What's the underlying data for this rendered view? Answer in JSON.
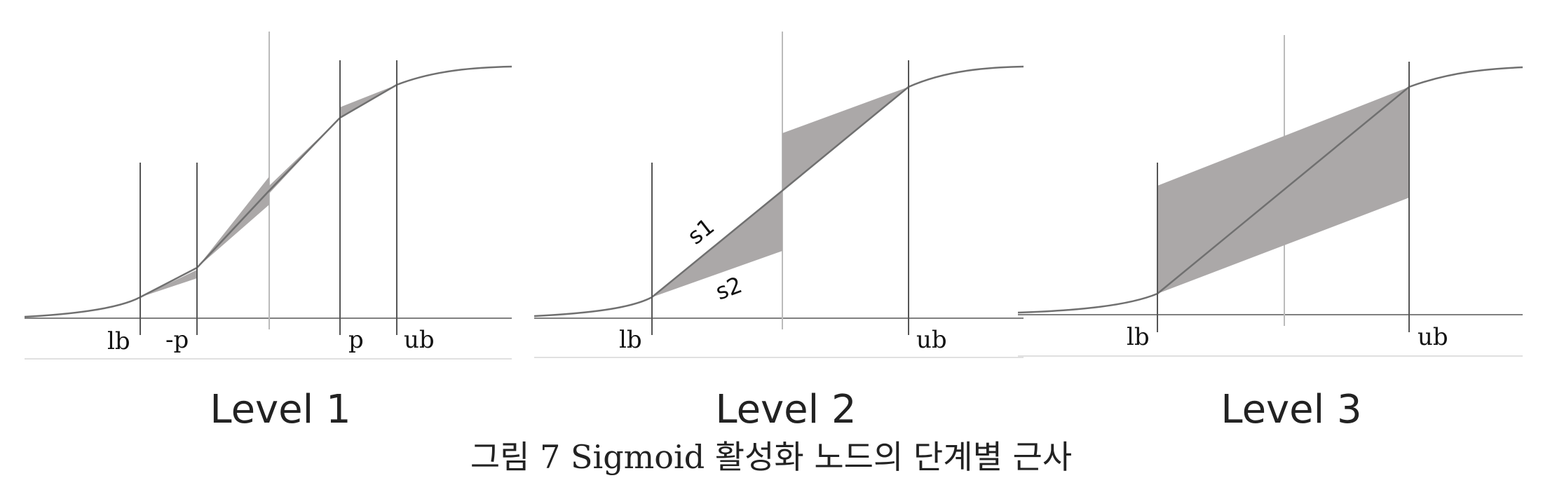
{
  "figure": {
    "caption": "그림 7 Sigmoid 활성화 노드의 단계별 근사",
    "colors": {
      "curve": "#707070",
      "axis": "#808080",
      "bound_line": "#555555",
      "center_line": "#bbbbbb",
      "baseline": "#e0e0e0",
      "fill": "#aba8a8"
    },
    "panels": [
      {
        "title": "Level 1",
        "labels": {
          "lb": "lb",
          "neg_p": "-p",
          "p": "p",
          "ub": "ub"
        }
      },
      {
        "title": "Level 2",
        "labels": {
          "lb": "lb",
          "ub": "ub",
          "s1": "s1",
          "s2": "s2"
        }
      },
      {
        "title": "Level 3",
        "labels": {
          "lb": "lb",
          "ub": "ub"
        }
      }
    ]
  }
}
